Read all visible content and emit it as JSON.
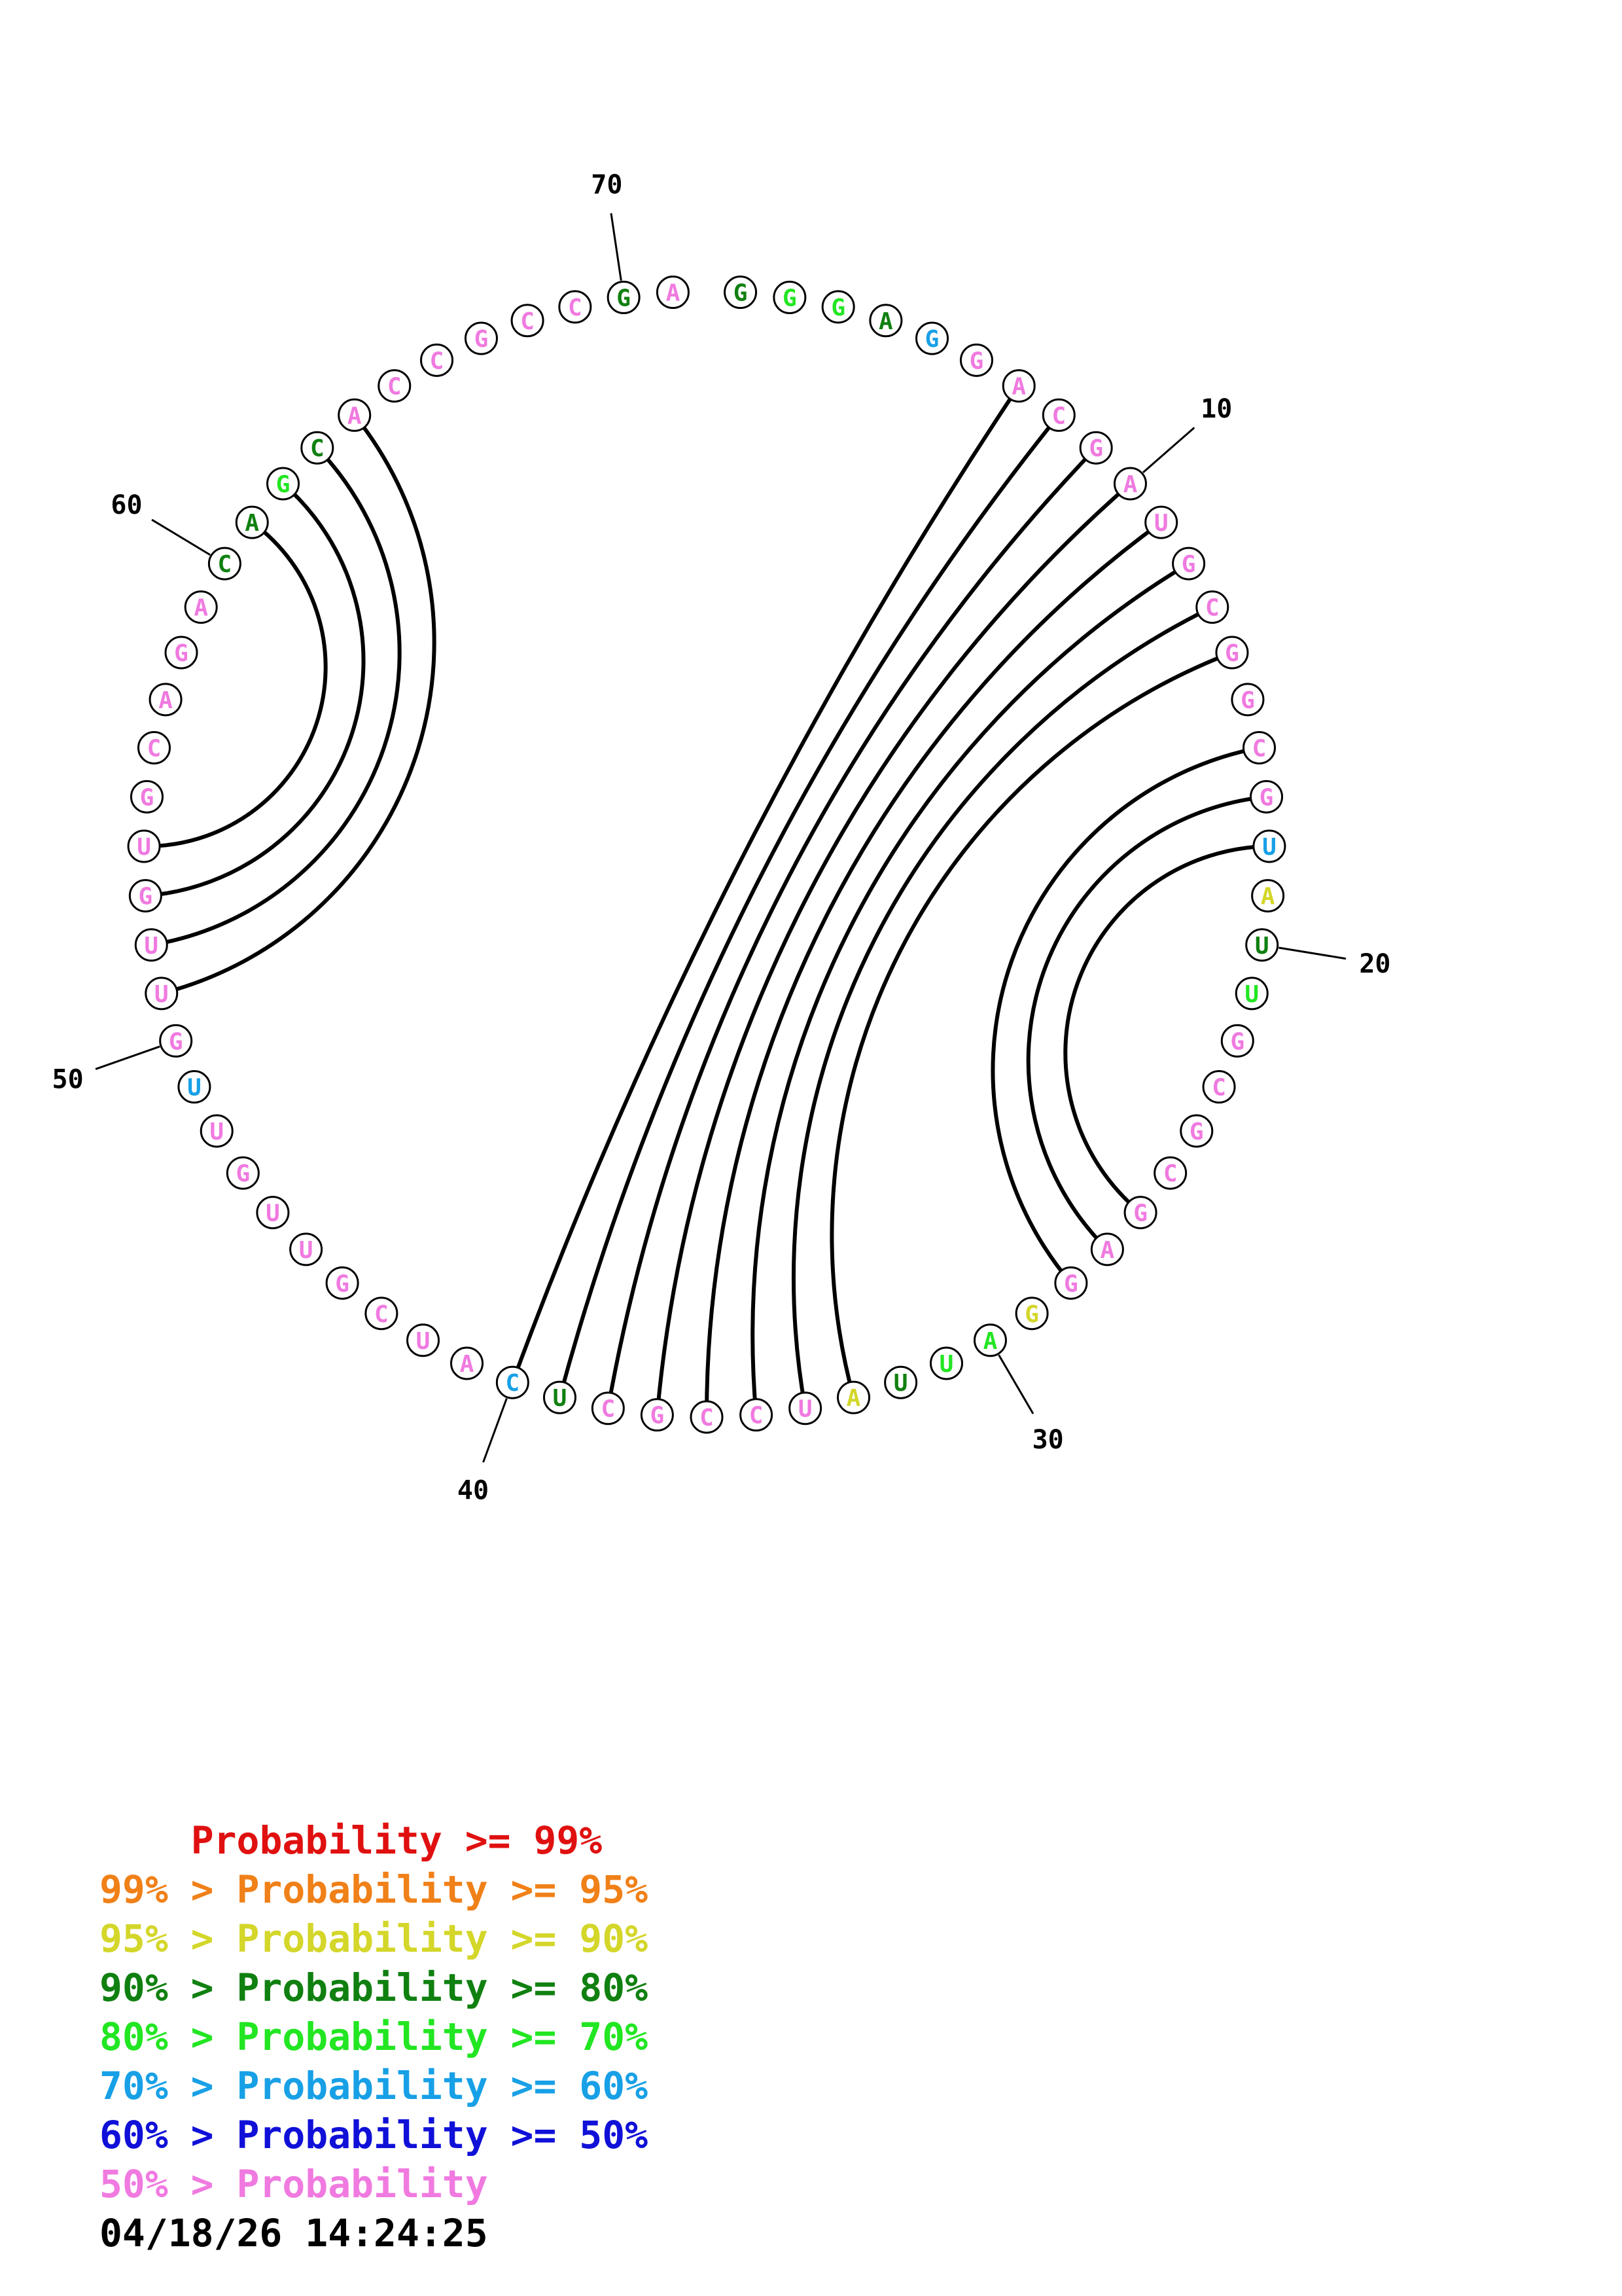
{
  "diagram": {
    "sequence": [
      "G",
      "G",
      "G",
      "A",
      "G",
      "G",
      "A",
      "C",
      "G",
      "A",
      "U",
      "G",
      "C",
      "G",
      "G",
      "C",
      "G",
      "U",
      "A",
      "U",
      "U",
      "G",
      "C",
      "G",
      "C",
      "G",
      "A",
      "G",
      "G",
      "A",
      "U",
      "U",
      "A",
      "U",
      "C",
      "C",
      "G",
      "C",
      "U",
      "C",
      "A",
      "U",
      "C",
      "G",
      "U",
      "U",
      "G",
      "U",
      "U",
      "G",
      "U",
      "U",
      "G",
      "U",
      "G",
      "C",
      "A",
      "G",
      "A",
      "C",
      "A",
      "G",
      "C",
      "A",
      "C",
      "C",
      "G",
      "C",
      "C",
      "G",
      "A"
    ],
    "base_color_classes": [
      "g80",
      "g70",
      "g70",
      "g80",
      "g60",
      "g50",
      "g50",
      "g50",
      "g50",
      "g50",
      "g50",
      "g50",
      "g50",
      "g50",
      "g50",
      "g50",
      "g50",
      "g60",
      "g90",
      "g80",
      "g70",
      "g50",
      "g50",
      "g50",
      "g50",
      "g50",
      "g50",
      "g50",
      "g90",
      "g70",
      "g70",
      "g80",
      "g90",
      "g50",
      "g50",
      "g50",
      "g50",
      "g50",
      "g80",
      "g60",
      "g50",
      "g50",
      "g50",
      "g50",
      "g50",
      "g50",
      "g50",
      "g50",
      "g60",
      "g50",
      "g50",
      "g50",
      "g50",
      "g50",
      "g50",
      "g50",
      "g50",
      "g50",
      "g50",
      "g80",
      "g80",
      "g70",
      "g80",
      "g50",
      "g50",
      "g50",
      "g50",
      "g50",
      "g50",
      "g80",
      "g50"
    ],
    "index_labels": [
      {
        "index": 10,
        "text": "10"
      },
      {
        "index": 20,
        "text": "20"
      },
      {
        "index": 30,
        "text": "30"
      },
      {
        "index": 40,
        "text": "40"
      },
      {
        "index": 50,
        "text": "50"
      },
      {
        "index": 60,
        "text": "60"
      },
      {
        "index": 70,
        "text": "70"
      }
    ],
    "pairs": [
      [
        7,
        40
      ],
      [
        8,
        39
      ],
      [
        9,
        38
      ],
      [
        10,
        37
      ],
      [
        11,
        36
      ],
      [
        12,
        35
      ],
      [
        13,
        34
      ],
      [
        14,
        33
      ],
      [
        16,
        28
      ],
      [
        17,
        27
      ],
      [
        18,
        26
      ],
      [
        51,
        64
      ],
      [
        52,
        63
      ],
      [
        53,
        62
      ],
      [
        54,
        61
      ]
    ],
    "colors": {
      "g99": "#e01010",
      "g95": "#f08018",
      "g90": "#d4d62a",
      "g80": "#108010",
      "g70": "#22e622",
      "g60": "#18a0e6",
      "g50": "#1010d8",
      "glow": "#f07ae0",
      "outline": "#000000",
      "label": "#000000"
    }
  },
  "legend": [
    {
      "prefix": "    ",
      "text": "Probability >= 99%",
      "color": "#e01010"
    },
    {
      "prefix": "99% > ",
      "text": "Probability >= 95%",
      "color": "#f08018"
    },
    {
      "prefix": "95% > ",
      "text": "Probability >= 90%",
      "color": "#d4d62a"
    },
    {
      "prefix": "90% > ",
      "text": "Probability >= 80%",
      "color": "#108010"
    },
    {
      "prefix": "80% > ",
      "text": "Probability >= 70%",
      "color": "#22e622"
    },
    {
      "prefix": "70% > ",
      "text": "Probability >= 60%",
      "color": "#18a0e6"
    },
    {
      "prefix": "60% > ",
      "text": "Probability >= 50%",
      "color": "#1010d8"
    },
    {
      "prefix": "50% > ",
      "text": "Probability",
      "color": "#f07ae0"
    }
  ],
  "timestamp": "04/18/26 14:24:25"
}
